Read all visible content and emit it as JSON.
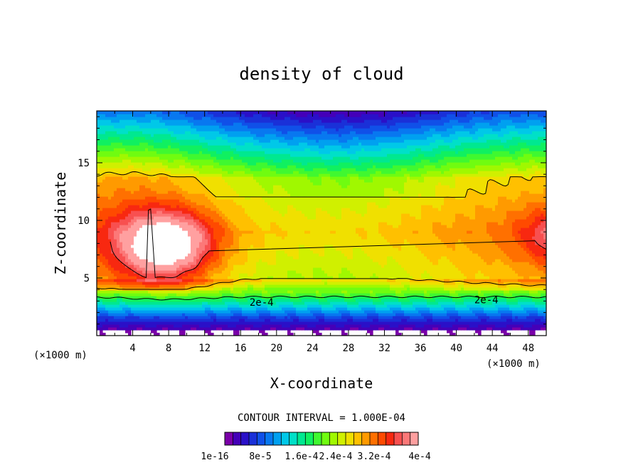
{
  "chart_data": {
    "type": "heatmap",
    "title": "density of cloud",
    "xlabel": "X-coordinate",
    "ylabel": "Z-coordinate",
    "x_unit": "(×1000 m)",
    "z_unit": "(×1000 m)",
    "xlim": [
      0,
      50
    ],
    "ylim": [
      0,
      19.5
    ],
    "x_ticks": [
      "4",
      "8",
      "12",
      "16",
      "20",
      "24",
      "28",
      "32",
      "36",
      "40",
      "44",
      "48"
    ],
    "y_ticks": [
      "5",
      "10",
      "15"
    ],
    "contour_interval_label": "CONTOUR INTERVAL = 1.000E-04",
    "colorbar": {
      "labels": [
        "1e-16",
        "8e-5",
        "1.6e-4",
        "2.4e-4",
        "3.2e-4",
        "4e-4"
      ],
      "colors": [
        "#7a00a8",
        "#4400b8",
        "#2a10c8",
        "#1a30d8",
        "#1050e8",
        "#0878f0",
        "#00a0f0",
        "#00c8e8",
        "#00e0c8",
        "#00e890",
        "#10f060",
        "#40f830",
        "#70fc10",
        "#a0f800",
        "#d0f000",
        "#f0e000",
        "#ffc000",
        "#ff9a00",
        "#ff7000",
        "#ff4a00",
        "#f82810",
        "#f85050",
        "#fc7878",
        "#ffa0a0"
      ]
    },
    "contour_lines": [
      {
        "label": "2e-4",
        "value": 0.0002,
        "label_x": 17,
        "label_y": 2.6
      },
      {
        "label": "2e-4",
        "value": 0.0002,
        "label_x": 42,
        "label_y": 2.8
      }
    ],
    "field_structure": {
      "max_core_center": [
        7.7,
        7.8
      ],
      "high_band_z": [
        5,
        14
      ],
      "transition_z": [
        1.5,
        5
      ],
      "decay_above_z": 14
    }
  }
}
